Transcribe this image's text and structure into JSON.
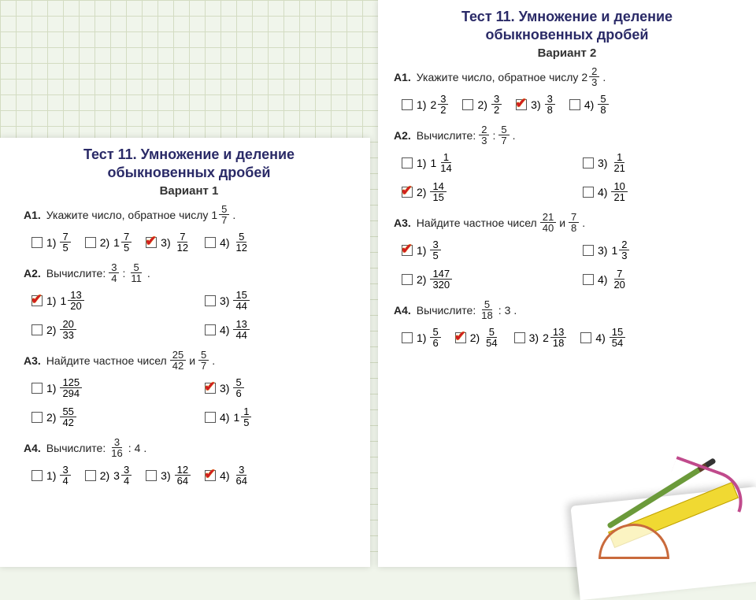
{
  "colors": {
    "background": "#f0f5eb",
    "grid_line": "#c0cda8",
    "paper": "#ffffff",
    "title": "#2a2a67",
    "text": "#222222",
    "checkbox_border": "#555555",
    "check_mark": "#d02020",
    "ruler": "#f0d932",
    "pencil": "#6b9a3a",
    "protractor": "#c96a3c",
    "curve": "#c04a8c"
  },
  "left": {
    "title_line1": "Тест 11. Умножение и деление",
    "title_line2": "обыкновенных дробей",
    "variant": "Вариант 1",
    "A1": {
      "label": "А1.",
      "text_before": "Укажите число, обратное числу",
      "mixed": {
        "whole": "1",
        "num": "5",
        "den": "7"
      },
      "period": ".",
      "options": [
        {
          "num_label": "1)",
          "whole": "",
          "num": "7",
          "den": "5",
          "checked": false
        },
        {
          "num_label": "2)",
          "whole": "1",
          "num": "7",
          "den": "5",
          "checked": false
        },
        {
          "num_label": "3)",
          "whole": "",
          "num": "7",
          "den": "12",
          "checked": true
        },
        {
          "num_label": "4)",
          "whole": "",
          "num": "5",
          "den": "12",
          "checked": false
        }
      ]
    },
    "A2": {
      "label": "А2.",
      "text_before": "Вычислите:",
      "frac1": {
        "num": "3",
        "den": "4"
      },
      "colon": ":",
      "frac2": {
        "num": "5",
        "den": "11"
      },
      "period": ".",
      "options": [
        {
          "num_label": "1)",
          "whole": "1",
          "num": "13",
          "den": "20",
          "checked": true
        },
        {
          "num_label": "3)",
          "whole": "",
          "num": "15",
          "den": "44",
          "checked": false
        },
        {
          "num_label": "2)",
          "whole": "",
          "num": "20",
          "den": "33",
          "checked": false
        },
        {
          "num_label": "4)",
          "whole": "",
          "num": "13",
          "den": "44",
          "checked": false
        }
      ]
    },
    "A3": {
      "label": "А3.",
      "text_before": "Найдите частное чисел",
      "frac1": {
        "num": "25",
        "den": "42"
      },
      "and": "и",
      "frac2": {
        "num": "5",
        "den": "7"
      },
      "period": ".",
      "options": [
        {
          "num_label": "1)",
          "whole": "",
          "num": "125",
          "den": "294",
          "checked": false
        },
        {
          "num_label": "3)",
          "whole": "",
          "num": "5",
          "den": "6",
          "checked": true
        },
        {
          "num_label": "2)",
          "whole": "",
          "num": "55",
          "den": "42",
          "checked": false
        },
        {
          "num_label": "4)",
          "whole": "1",
          "num": "1",
          "den": "5",
          "checked": false
        }
      ]
    },
    "A4": {
      "label": "А4.",
      "text_before": "Вычислите:",
      "frac1": {
        "num": "3",
        "den": "16"
      },
      "colon": ":",
      "divisor": "4",
      "period": ".",
      "options": [
        {
          "num_label": "1)",
          "whole": "",
          "num": "3",
          "den": "4",
          "checked": false
        },
        {
          "num_label": "2)",
          "whole": "3",
          "num": "3",
          "den": "4",
          "checked": false
        },
        {
          "num_label": "3)",
          "whole": "",
          "num": "12",
          "den": "64",
          "checked": false
        },
        {
          "num_label": "4)",
          "whole": "",
          "num": "3",
          "den": "64",
          "checked": true
        }
      ]
    }
  },
  "right": {
    "title_line1": "Тест 11. Умножение и деление",
    "title_line2": "обыкновенных дробей",
    "variant": "Вариант 2",
    "A1": {
      "label": "А1.",
      "text_before": "Укажите число, обратное числу",
      "mixed": {
        "whole": "2",
        "num": "2",
        "den": "3"
      },
      "period": ".",
      "options": [
        {
          "num_label": "1)",
          "whole": "2",
          "num": "3",
          "den": "2",
          "checked": false
        },
        {
          "num_label": "2)",
          "whole": "",
          "num": "3",
          "den": "2",
          "checked": false
        },
        {
          "num_label": "3)",
          "whole": "",
          "num": "3",
          "den": "8",
          "checked": true
        },
        {
          "num_label": "4)",
          "whole": "",
          "num": "5",
          "den": "8",
          "checked": false
        }
      ]
    },
    "A2": {
      "label": "А2.",
      "text_before": "Вычислите:",
      "frac1": {
        "num": "2",
        "den": "3"
      },
      "colon": ":",
      "frac2": {
        "num": "5",
        "den": "7"
      },
      "period": ".",
      "options": [
        {
          "num_label": "1)",
          "whole": "1",
          "num": "1",
          "den": "14",
          "checked": false
        },
        {
          "num_label": "3)",
          "whole": "",
          "num": "1",
          "den": "21",
          "checked": false
        },
        {
          "num_label": "2)",
          "whole": "",
          "num": "14",
          "den": "15",
          "checked": true
        },
        {
          "num_label": "4)",
          "whole": "",
          "num": "10",
          "den": "21",
          "checked": false
        }
      ]
    },
    "A3": {
      "label": "А3.",
      "text_before": "Найдите частное чисел",
      "frac1": {
        "num": "21",
        "den": "40"
      },
      "and": "и",
      "frac2": {
        "num": "7",
        "den": "8"
      },
      "period": ".",
      "options": [
        {
          "num_label": "1)",
          "whole": "",
          "num": "3",
          "den": "5",
          "checked": true
        },
        {
          "num_label": "3)",
          "whole": "1",
          "num": "2",
          "den": "3",
          "checked": false
        },
        {
          "num_label": "2)",
          "whole": "",
          "num": "147",
          "den": "320",
          "checked": false
        },
        {
          "num_label": "4)",
          "whole": "",
          "num": "7",
          "den": "20",
          "checked": false
        }
      ]
    },
    "A4": {
      "label": "А4.",
      "text_before": "Вычислите:",
      "frac1": {
        "num": "5",
        "den": "18"
      },
      "colon": ":",
      "divisor": "3",
      "period": ".",
      "options": [
        {
          "num_label": "1)",
          "whole": "",
          "num": "5",
          "den": "6",
          "checked": false
        },
        {
          "num_label": "2)",
          "whole": "",
          "num": "5",
          "den": "54",
          "checked": true
        },
        {
          "num_label": "3)",
          "whole": "2",
          "num": "13",
          "den": "18",
          "checked": false
        },
        {
          "num_label": "4)",
          "whole": "",
          "num": "15",
          "den": "54",
          "checked": false
        }
      ]
    }
  }
}
